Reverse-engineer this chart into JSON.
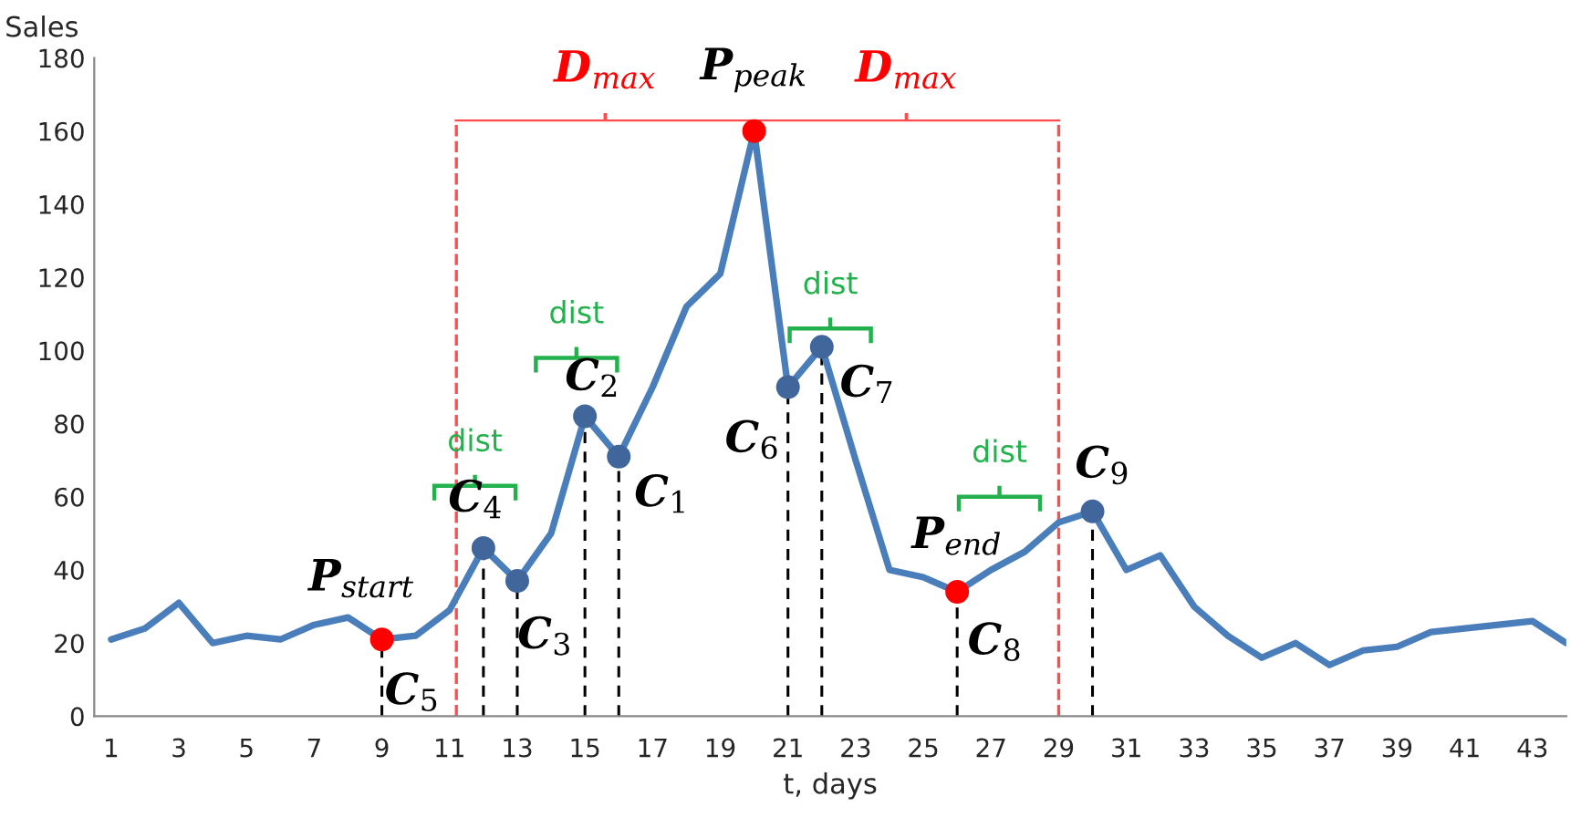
{
  "chart_data": {
    "type": "line",
    "xlabel": "t, days",
    "ylabel": "Sales",
    "x": [
      1,
      2,
      3,
      4,
      5,
      6,
      7,
      8,
      9,
      10,
      11,
      12,
      13,
      14,
      15,
      16,
      17,
      18,
      19,
      20,
      21,
      22,
      23,
      24,
      25,
      26,
      27,
      28,
      29,
      30,
      31,
      32,
      33,
      34,
      35,
      36,
      37,
      38,
      39,
      40,
      41,
      42,
      43,
      44
    ],
    "series": [
      {
        "color": "#4a7ebb",
        "values": [
          21,
          24,
          31,
          20,
          22,
          21,
          25,
          27,
          21,
          22,
          29,
          46,
          37,
          50,
          82,
          71,
          90,
          112,
          121,
          160,
          90,
          101,
          70,
          40,
          38,
          34,
          40,
          45,
          53,
          56,
          40,
          44,
          30,
          22,
          16,
          20,
          14,
          18,
          19,
          23,
          24,
          25,
          26,
          20
        ]
      },
      {
        "type": "scatter",
        "marker": "circle",
        "color": "#41669c",
        "x": [
          12,
          13,
          15,
          16,
          21,
          22,
          30
        ],
        "values": [
          46,
          37,
          82,
          71,
          90,
          101,
          56
        ]
      },
      {
        "type": "scatter",
        "marker": "circle",
        "color": "#ff0000",
        "x": [
          9,
          20,
          26
        ],
        "values": [
          21,
          160,
          34
        ]
      }
    ],
    "xlim": [
      0.5,
      44
    ],
    "xticks": [
      1,
      3,
      5,
      7,
      9,
      11,
      13,
      15,
      17,
      19,
      21,
      23,
      25,
      27,
      29,
      31,
      33,
      35,
      37,
      39,
      41,
      43
    ],
    "ylim": [
      0,
      180
    ],
    "yticks": [
      0,
      20,
      40,
      60,
      80,
      100,
      120,
      140,
      160,
      180
    ],
    "line_style": "solid",
    "ref_lines": [
      {
        "axis": "x",
        "value": 11.2,
        "color": "#ff4d4d",
        "line_style": "dashed"
      },
      {
        "axis": "x",
        "value": 29,
        "color": "#ff4d4d",
        "line_style": "dashed"
      }
    ],
    "annotations": [
      {
        "text": "P$_{start}$",
        "x": 9,
        "y": 21
      },
      {
        "text": "P$_{peak}$",
        "x": 20,
        "y": 160
      },
      {
        "text": "P$_{end}$",
        "x": 26,
        "y": 34
      },
      {
        "text": "C$_{1}$",
        "x": 16,
        "y": 71
      },
      {
        "text": "C$_{2}$",
        "x": 15,
        "y": 82
      },
      {
        "text": "C$_{3}$",
        "x": 13,
        "y": 37
      },
      {
        "text": "C$_{4}$",
        "x": 12,
        "y": 46
      },
      {
        "text": "C$_{5}$",
        "x": 9,
        "y": 21
      },
      {
        "text": "C$_{6}$",
        "x": 21,
        "y": 90
      },
      {
        "text": "C$_{7}$",
        "x": 22,
        "y": 101
      },
      {
        "text": "C$_{8}$",
        "x": 26,
        "y": 34
      },
      {
        "text": "C$_{9}$",
        "x": 30,
        "y": 56
      },
      "D$_{max}$",
      "D$_{max}$",
      "dist",
      "dist",
      "dist",
      "dist"
    ]
  }
}
